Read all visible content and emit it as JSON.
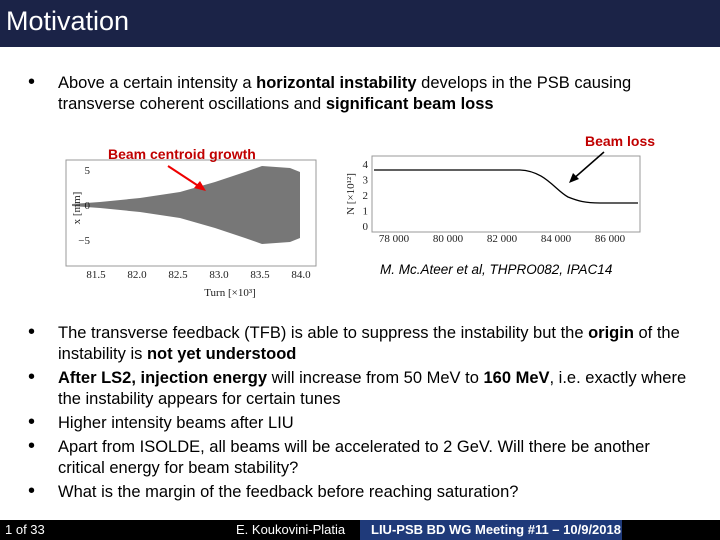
{
  "header": {
    "title": "Motivation"
  },
  "intro_bullets": [
    {
      "runs": [
        {
          "text": "Above a certain intensity a "
        },
        {
          "text": "horizontal instability",
          "bold": true
        },
        {
          "text": " develops in the PSB causing transverse coherent oscillations and "
        },
        {
          "text": "significant beam loss",
          "bold": true
        }
      ]
    }
  ],
  "figure": {
    "left_plot": {
      "annotation": "Beam centroid growth",
      "ylabel": "x [mm]",
      "xlabel": "Turn [×10³]",
      "yticks": [
        "5",
        "0",
        "−5"
      ],
      "xticks": [
        "81.5",
        "82.0",
        "82.5",
        "83.0",
        "83.5",
        "84.0"
      ]
    },
    "right_plot": {
      "annotation": "Beam loss",
      "ylabel": "N [×10¹²]",
      "yticks": [
        "4",
        "3",
        "2",
        "1",
        "0"
      ],
      "xticks": [
        "78 000",
        "80 000",
        "82 000",
        "84 000",
        "86 000"
      ]
    },
    "citation": "M. Mc.Ateer et al, THPRO082, IPAC14"
  },
  "bullets": [
    {
      "runs": [
        {
          "text": "The transverse feedback (TFB) is able to suppress the instability but the "
        },
        {
          "text": "origin",
          "bold": true
        },
        {
          "text": " of the instability is "
        },
        {
          "text": "not yet understood",
          "bold": true
        }
      ]
    },
    {
      "runs": [
        {
          "text": "After LS2, injection energy",
          "bold": true
        },
        {
          "text": " will increase from 50 MeV to "
        },
        {
          "text": "160 MeV",
          "bold": true
        },
        {
          "text": ", i.e. exactly where the instability appears for certain tunes"
        }
      ]
    },
    {
      "runs": [
        {
          "text": "Higher intensity beams after LIU"
        }
      ]
    },
    {
      "runs": [
        {
          "text": "Apart from ISOLDE, all beams will be accelerated to 2 GeV. Will there be another critical energy for beam stability?"
        }
      ]
    },
    {
      "runs": [
        {
          "text": "What is the margin of the feedback before reaching saturation?"
        }
      ]
    }
  ],
  "footer": {
    "page": "1 of 33",
    "author": "E. Koukovini-Platia",
    "meeting": "LIU-PSB BD WG Meeting #11 – 10/9/2018"
  }
}
